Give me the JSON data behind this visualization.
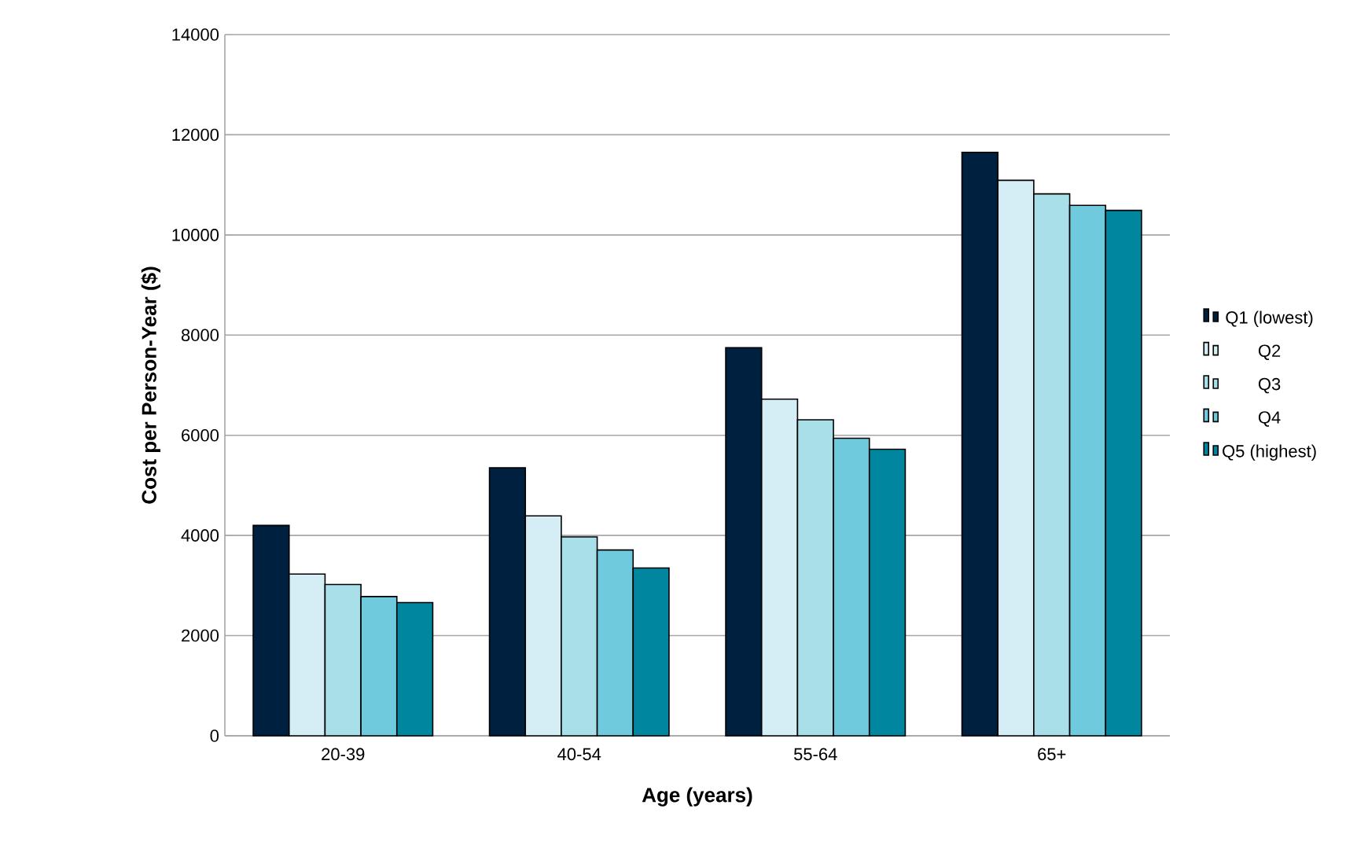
{
  "chart_data": {
    "type": "bar",
    "xlabel": "Age (years)",
    "ylabel": "Cost per Person-Year ($)",
    "categories": [
      "20-39",
      "40-54",
      "55-64",
      "65+"
    ],
    "series": [
      {
        "name": "Q1 (lowest)",
        "color": "#00203f",
        "values": [
          4200,
          5350,
          7750,
          11650
        ]
      },
      {
        "name": "Q2",
        "color": "#d5edf4",
        "values": [
          3230,
          4390,
          6720,
          11090
        ]
      },
      {
        "name": "Q3",
        "color": "#a8dfe8",
        "values": [
          3020,
          3970,
          6310,
          10820
        ]
      },
      {
        "name": "Q4",
        "color": "#70cadd",
        "values": [
          2780,
          3710,
          5940,
          10590
        ]
      },
      {
        "name": "Q5 (highest)",
        "color": "#00869f",
        "values": [
          2660,
          3350,
          5720,
          10490
        ]
      }
    ],
    "ylim": [
      0,
      14000
    ],
    "yticks": [
      0,
      2000,
      4000,
      6000,
      8000,
      10000,
      12000,
      14000
    ],
    "grid": "y",
    "legend": "right"
  }
}
